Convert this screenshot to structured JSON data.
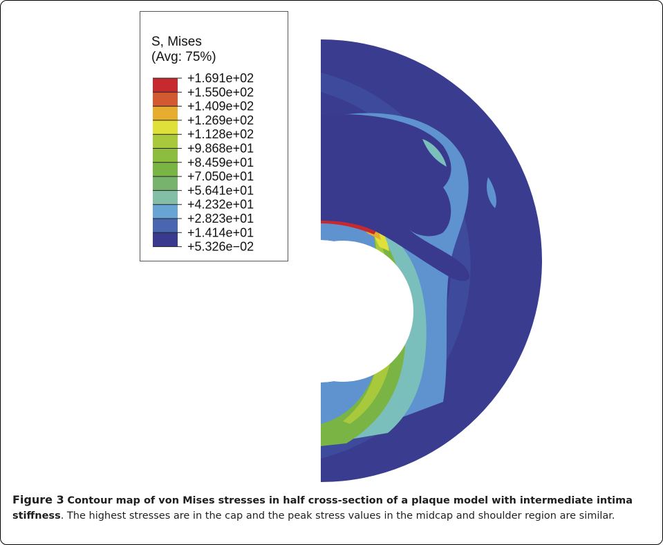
{
  "legend": {
    "title_line1": "S, Mises",
    "title_line2": "(Avg: 75%)",
    "labels": [
      "+1.691e+02",
      "+1.550e+02",
      "+1.409e+02",
      "+1.269e+02",
      "+1.128e+02",
      "+9.868e+01",
      "+8.459e+01",
      "+7.050e+01",
      "+5.641e+01",
      "+4.232e+01",
      "+2.823e+01",
      "+1.414e+01",
      "+5.326e−02"
    ],
    "colors": [
      "#c62a2f",
      "#d35a30",
      "#e6ad2e",
      "#dfe03a",
      "#a8c93b",
      "#8cbd3e",
      "#7ab444",
      "#77b36d",
      "#82bfa6",
      "#68a5d5",
      "#4a66b0",
      "#39398e"
    ]
  },
  "contour_colors": {
    "outer_background": "#3a3d8f",
    "adventitia_band": "#3f4c9e",
    "lipid_core": "#39398e",
    "light_blue_zone": "#5f93d0",
    "cyan_zone": "#7bbfbc",
    "green_zone": "#7ab444",
    "lime_zone": "#a8c93b",
    "yellow_zone": "#dfe03a",
    "orange_zone": "#e6ad2e",
    "red_zone": "#c62a2f"
  },
  "caption": {
    "label": "Figure 3",
    "title": "Contour map of von Mises stresses in half cross-section of a plaque model with intermediate intima stiffness",
    "body": ". The highest stresses are in the cap and the peak stress values in the midcap and shoulder region are similar."
  }
}
